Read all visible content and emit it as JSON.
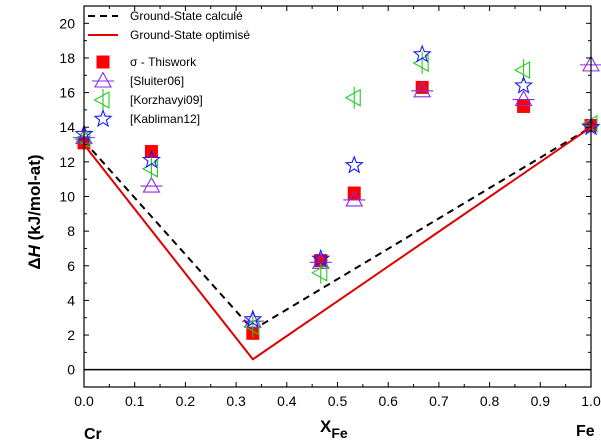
{
  "chart_data": {
    "type": "scatter",
    "xlabel": "X",
    "xlabel_sub": "Fe",
    "ylabel_prefix": "Δ",
    "ylabel_italic": "H",
    "ylabel_suffix": " (kJ/mol-at)",
    "x_end_labels": {
      "left": "Cr",
      "right": "Fe"
    },
    "xlim": [
      0.0,
      1.0
    ],
    "ylim": [
      -1.0,
      21.0
    ],
    "xticks": [
      "0.0",
      "0.1",
      "0.2",
      "0.3",
      "0.4",
      "0.5",
      "0.6",
      "0.7",
      "0.8",
      "0.9",
      "1.0"
    ],
    "yticks": [
      "0",
      "2",
      "4",
      "6",
      "8",
      "10",
      "12",
      "14",
      "16",
      "18",
      "20"
    ],
    "zero_line": 0,
    "grid": false,
    "legend_position": "top-left",
    "lines": [
      {
        "name": "Ground-State calculé",
        "style": "dashed",
        "color": "#000000",
        "x": [
          0.0,
          0.333,
          1.0
        ],
        "y": [
          13.2,
          2.3,
          14.0
        ]
      },
      {
        "name": "Ground-State optimisé",
        "style": "solid",
        "color": "#e00000",
        "x": [
          0.0,
          0.333,
          1.0
        ],
        "y": [
          13.0,
          0.6,
          14.0
        ]
      }
    ],
    "series": [
      {
        "name": "σ - Thiswork",
        "marker": "square",
        "color": "#ff0000",
        "x": [
          0.0,
          0.133,
          0.333,
          0.467,
          0.533,
          0.667,
          0.867,
          1.0
        ],
        "y": [
          13.1,
          12.6,
          2.1,
          6.3,
          10.2,
          16.3,
          15.2,
          14.1
        ]
      },
      {
        "name": "[Sluiter06]",
        "marker": "triangle-up",
        "color": "#8a2be2",
        "x": [
          0.0,
          0.133,
          0.333,
          0.467,
          0.533,
          0.667,
          0.867,
          1.0
        ],
        "y": [
          13.4,
          10.6,
          2.8,
          6.2,
          9.8,
          16.1,
          15.6,
          17.6
        ]
      },
      {
        "name": "[Korzhavyi09]",
        "marker": "triangle-left",
        "color": "#22cc22",
        "x": [
          0.0,
          0.133,
          0.333,
          0.467,
          0.533,
          0.667,
          0.867,
          1.0
        ],
        "y": [
          13.3,
          11.6,
          2.5,
          5.6,
          15.7,
          17.7,
          17.3,
          14.2
        ]
      },
      {
        "name": "[Kabliman12]",
        "marker": "star",
        "color": "#1a1aff",
        "x": [
          0.0,
          0.133,
          0.333,
          0.467,
          0.533,
          0.667,
          0.867,
          1.0
        ],
        "y": [
          13.6,
          12.1,
          2.9,
          6.4,
          11.8,
          18.2,
          16.4,
          14.0
        ]
      }
    ]
  }
}
